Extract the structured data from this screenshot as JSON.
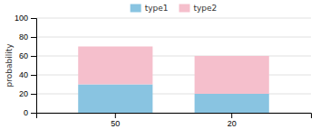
{
  "chart_data": {
    "type": "bar",
    "stacked": true,
    "categories": [
      "50",
      "20"
    ],
    "series": [
      {
        "name": "type1",
        "color": "#89c4e1",
        "values": [
          30,
          20
        ]
      },
      {
        "name": "type2",
        "color": "#f5bfcc",
        "values": [
          40,
          40
        ]
      }
    ],
    "ylabel": "probability",
    "ylim": [
      0,
      100
    ],
    "yticks": [
      0,
      20,
      40,
      60,
      80,
      100
    ],
    "grid": true,
    "legend": "top"
  }
}
